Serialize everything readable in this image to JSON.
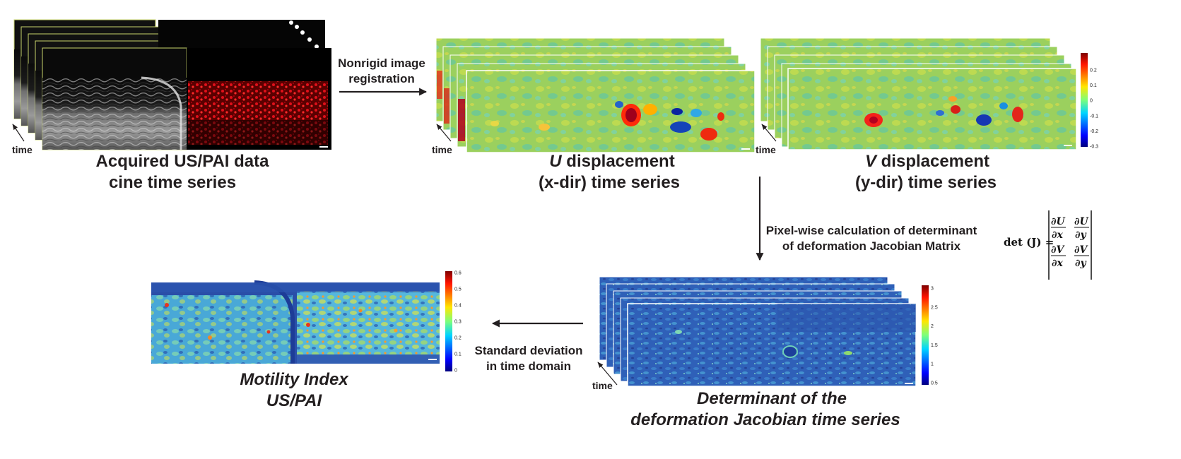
{
  "acquired": {
    "time_label": "time",
    "caption_line1": "Acquired US/PAI data",
    "caption_line2": "cine time series"
  },
  "registration": {
    "label_line1": "Nonrigid image",
    "label_line2": "registration"
  },
  "u_displacement": {
    "time_label": "time",
    "caption_u": "U",
    "caption_rest": " displacement",
    "caption_line2": "(x-dir) time series"
  },
  "v_displacement": {
    "time_label": "time",
    "caption_v": "V",
    "caption_rest": " displacement",
    "caption_line2": "(y-dir) time series",
    "colorbar_ticks": [
      "0.2",
      "0.1",
      "0",
      "-0.1",
      "-0.2",
      "-0.3"
    ]
  },
  "jacobian_calc": {
    "label_line1": "Pixel-wise calculation of determinant",
    "label_line2": "of deformation Jacobian Matrix",
    "formula_lhs": "det (J) =",
    "du": "∂U",
    "dv": "∂V",
    "dx": "∂x",
    "dy": "∂y"
  },
  "determinant": {
    "time_label": "time",
    "caption_line1": "Determinant of the",
    "caption_line2": "deformation Jacobian time series",
    "colorbar_ticks": [
      "3",
      "2.5",
      "2",
      "1.5",
      "1",
      "0.5"
    ]
  },
  "std_dev": {
    "label_line1": "Standard deviation",
    "label_line2": "in time domain"
  },
  "motility": {
    "caption_line1": "Motility Index",
    "caption_line2": "US/PAI",
    "colorbar_ticks": [
      "0.6",
      "0.5",
      "0.4",
      "0.3",
      "0.2",
      "0.1",
      "0"
    ]
  },
  "colors": {
    "arrow": "#231f20",
    "ultrasound_frame_border": "#c8d46a",
    "jet_high": "#a50026",
    "jet_low": "#313695",
    "field_base": "#9acd5a",
    "jacobian_base": "#2a5db0",
    "motility_base": "#5cb9e0"
  }
}
